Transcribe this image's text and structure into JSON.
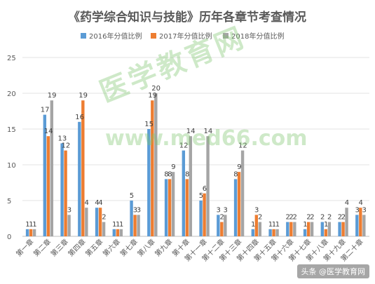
{
  "chart_data": {
    "type": "bar",
    "title": "《药学综合知识与技能》历年各章节考查情况",
    "categories": [
      "第一章",
      "第二章",
      "第三章",
      "第四章",
      "第五章",
      "第六章",
      "第七章",
      "第八章",
      "第九章",
      "第十章",
      "第十一章",
      "第十二章",
      "第十三章",
      "第十四章",
      "第十五章",
      "第十六章",
      "第十七章",
      "第十八章",
      "第十九章",
      "第二十章"
    ],
    "series": [
      {
        "name": "2016年分值比例",
        "color": "#5b9bd5",
        "values": [
          1,
          17,
          13,
          16,
          4,
          1,
          5,
          15,
          8,
          12,
          5,
          3,
          8,
          1,
          1,
          2,
          1,
          2,
          2,
          3
        ]
      },
      {
        "name": "2017年分值比例",
        "color": "#ed7d31",
        "values": [
          1,
          14,
          12,
          19,
          4,
          1,
          3,
          19,
          8,
          8,
          6,
          2,
          9,
          3,
          1,
          2,
          2,
          1,
          2,
          4
        ]
      },
      {
        "name": "2018年分值比例",
        "color": "#a5a5a5",
        "values": [
          1,
          19,
          3,
          4,
          2,
          1,
          3,
          20,
          9,
          14,
          14,
          3,
          12,
          2,
          1,
          2,
          2,
          2,
          4,
          3
        ]
      }
    ],
    "ylim": [
      0,
      25
    ],
    "yticks": [
      0,
      5,
      10,
      15,
      20,
      25
    ],
    "grid": true,
    "legend_position": "top"
  },
  "watermark": {
    "text": "医学教育网",
    "url": "www.med66.com"
  },
  "source_tag": "头条 @医学教育网"
}
